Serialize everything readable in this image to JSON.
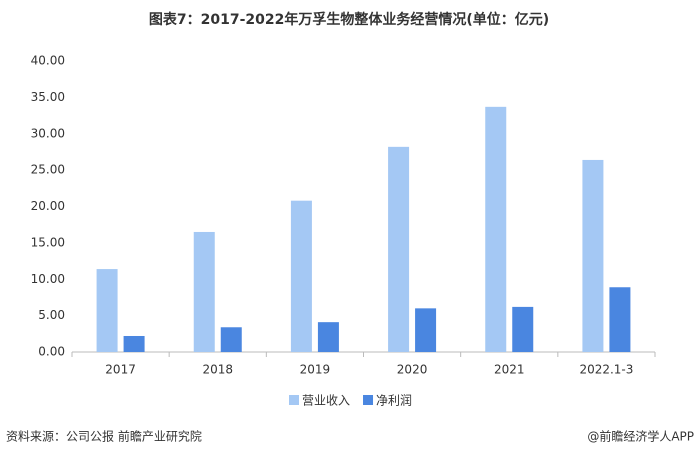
{
  "chart_data": {
    "type": "bar",
    "title": "图表7：2017-2022年万孚生物整体业务经营情况(单位：亿元)",
    "categories": [
      "2017",
      "2018",
      "2019",
      "2020",
      "2021",
      "2022.1-3"
    ],
    "series": [
      {
        "name": "营业收入",
        "color": "#a4c8f4",
        "values": [
          11.4,
          16.5,
          20.8,
          28.2,
          33.7,
          26.4
        ]
      },
      {
        "name": "净利润",
        "color": "#4a86e0",
        "values": [
          2.2,
          3.4,
          4.1,
          6.0,
          6.2,
          8.9
        ]
      }
    ],
    "ylim": [
      0,
      40
    ],
    "yticks": [
      {
        "value": 0,
        "label": "0.00"
      },
      {
        "value": 5,
        "label": "5.00"
      },
      {
        "value": 10,
        "label": "10.00"
      },
      {
        "value": 15,
        "label": "15.00"
      },
      {
        "value": 20,
        "label": "20.00"
      },
      {
        "value": 25,
        "label": "25.00"
      },
      {
        "value": 30,
        "label": "30.00"
      },
      {
        "value": 35,
        "label": "35.00"
      },
      {
        "value": 40,
        "label": "40.00"
      }
    ],
    "grid": false,
    "legend": "bottom",
    "source": "资料来源：公司公报 前瞻产业研究院",
    "credit": "@前瞻经济学人APP"
  }
}
